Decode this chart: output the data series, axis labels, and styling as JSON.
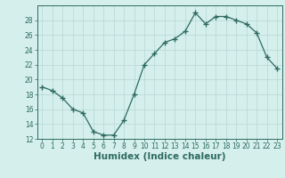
{
  "x": [
    0,
    1,
    2,
    3,
    4,
    5,
    6,
    7,
    8,
    9,
    10,
    11,
    12,
    13,
    14,
    15,
    16,
    17,
    18,
    19,
    20,
    21,
    22,
    23
  ],
  "y": [
    19,
    18.5,
    17.5,
    16,
    15.5,
    13,
    12.5,
    12.5,
    14.5,
    18,
    22,
    23.5,
    25,
    25.5,
    26.5,
    29,
    27.5,
    28.5,
    28.5,
    28,
    27.5,
    26.3,
    23,
    21.5
  ],
  "line_color": "#2e6b5e",
  "marker": "+",
  "marker_size": 4,
  "bg_color": "#d4efec",
  "grid_color": "#b8d8d4",
  "xlabel": "Humidex (Indice chaleur)",
  "ylim": [
    12,
    30
  ],
  "xlim": [
    -0.5,
    23.5
  ],
  "yticks": [
    12,
    14,
    16,
    18,
    20,
    22,
    24,
    26,
    28
  ],
  "xticks": [
    0,
    1,
    2,
    3,
    4,
    5,
    6,
    7,
    8,
    9,
    10,
    11,
    12,
    13,
    14,
    15,
    16,
    17,
    18,
    19,
    20,
    21,
    22,
    23
  ],
  "tick_fontsize": 5.5,
  "xlabel_size": 7.5,
  "xlabel_bold": true
}
